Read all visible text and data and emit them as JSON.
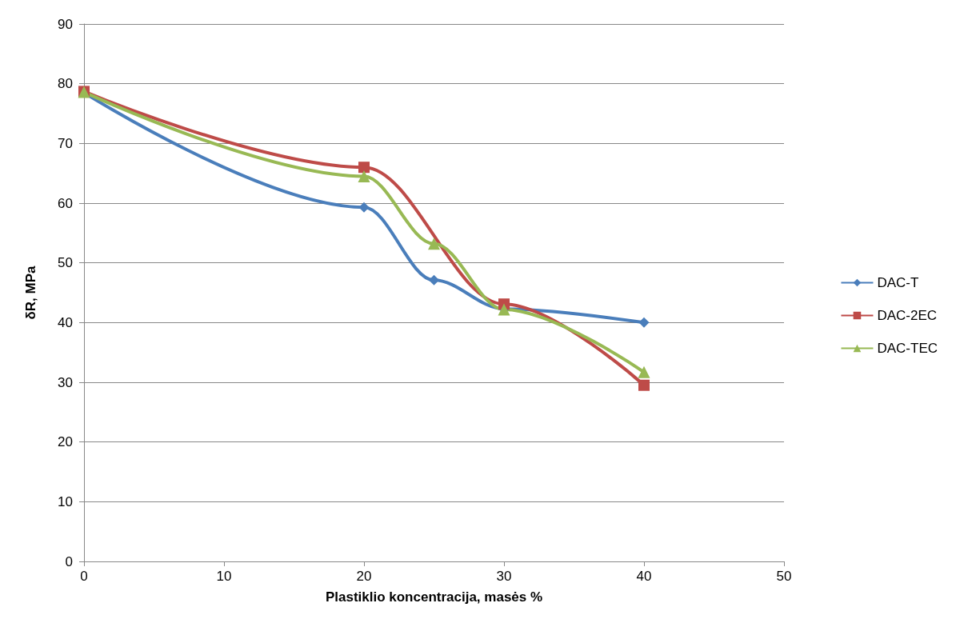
{
  "chart_data": {
    "type": "line",
    "xlabel": "Plastiklio koncentracija, masės %",
    "ylabel": "δR, MPa",
    "xlim": [
      0,
      50
    ],
    "xticks": [
      0,
      10,
      20,
      30,
      40,
      50
    ],
    "ylim": [
      0,
      90
    ],
    "yticks": [
      0,
      10,
      20,
      30,
      40,
      50,
      60,
      70,
      80,
      90
    ],
    "grid": "y",
    "legend": "right",
    "series": [
      {
        "name": "DAC-T",
        "color": "#4a7ebb",
        "marker": "diamond",
        "x": [
          0,
          20,
          25,
          30,
          40
        ],
        "values": [
          78.5,
          59.3,
          47.1,
          42.3,
          40.0
        ]
      },
      {
        "name": "DAC-2EC",
        "color": "#be4b48",
        "marker": "square",
        "x": [
          0,
          20,
          30,
          40
        ],
        "values": [
          78.7,
          66.0,
          43.1,
          29.5
        ]
      },
      {
        "name": "DAC-TEC",
        "color": "#98b954",
        "marker": "triangle",
        "x": [
          0,
          20,
          25,
          30,
          40
        ],
        "values": [
          78.6,
          64.5,
          53.2,
          42.2,
          31.7
        ]
      }
    ]
  }
}
